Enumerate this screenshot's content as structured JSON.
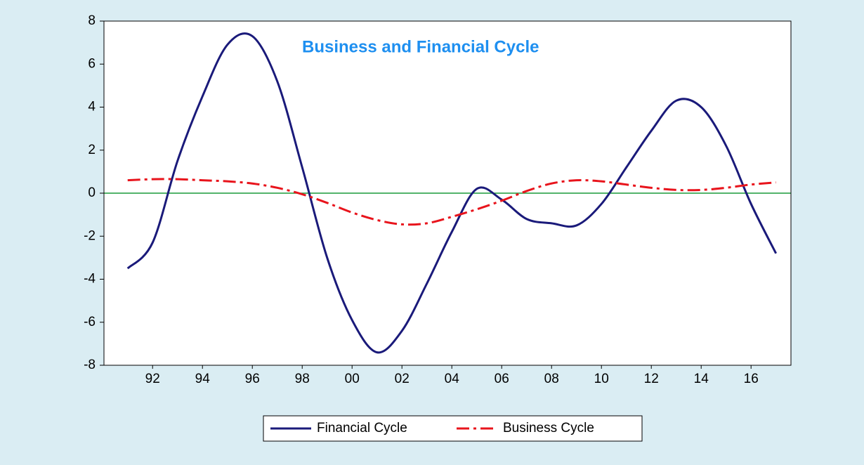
{
  "chart_data": {
    "type": "line",
    "title": "Business and Financial Cycle",
    "x": [
      1991,
      1992,
      1993,
      1994,
      1995,
      1996,
      1997,
      1998,
      1999,
      2000,
      2001,
      2002,
      2003,
      2004,
      2005,
      2006,
      2007,
      2008,
      2009,
      2010,
      2011,
      2012,
      2013,
      2014,
      2015,
      2016,
      2017
    ],
    "series": [
      {
        "name": "Financial Cycle",
        "color": "#1a1a7a",
        "values": [
          -3.5,
          -2.3,
          1.5,
          4.5,
          6.9,
          7.3,
          5.2,
          1.2,
          -3.0,
          -5.9,
          -7.4,
          -6.4,
          -4.2,
          -1.8,
          0.2,
          -0.3,
          -1.2,
          -1.4,
          -1.5,
          -0.5,
          1.2,
          2.9,
          4.3,
          4.0,
          2.2,
          -0.5,
          -2.8
        ]
      },
      {
        "name": "Business Cycle",
        "color": "#e8141c",
        "values": [
          0.6,
          0.65,
          0.65,
          0.6,
          0.55,
          0.45,
          0.25,
          -0.05,
          -0.45,
          -0.9,
          -1.25,
          -1.45,
          -1.4,
          -1.1,
          -0.75,
          -0.35,
          0.1,
          0.45,
          0.6,
          0.55,
          0.4,
          0.25,
          0.15,
          0.15,
          0.25,
          0.4,
          0.5
        ]
      }
    ],
    "xlim": [
      1990.05,
      2017.6
    ],
    "xticks": [
      {
        "value": 1992,
        "label": "92"
      },
      {
        "value": 1994,
        "label": "94"
      },
      {
        "value": 1996,
        "label": "96"
      },
      {
        "value": 1998,
        "label": "98"
      },
      {
        "value": 2000,
        "label": "00"
      },
      {
        "value": 2002,
        "label": "02"
      },
      {
        "value": 2004,
        "label": "04"
      },
      {
        "value": 2006,
        "label": "06"
      },
      {
        "value": 2008,
        "label": "08"
      },
      {
        "value": 2010,
        "label": "10"
      },
      {
        "value": 2012,
        "label": "12"
      },
      {
        "value": 2014,
        "label": "14"
      },
      {
        "value": 2016,
        "label": "16"
      }
    ],
    "ylim": [
      -8,
      8
    ],
    "yticks": [
      -8,
      -6,
      -4,
      -2,
      0,
      2,
      4,
      6,
      8
    ],
    "zero_line_color": "#1a9a3a",
    "legend": "bottom"
  }
}
